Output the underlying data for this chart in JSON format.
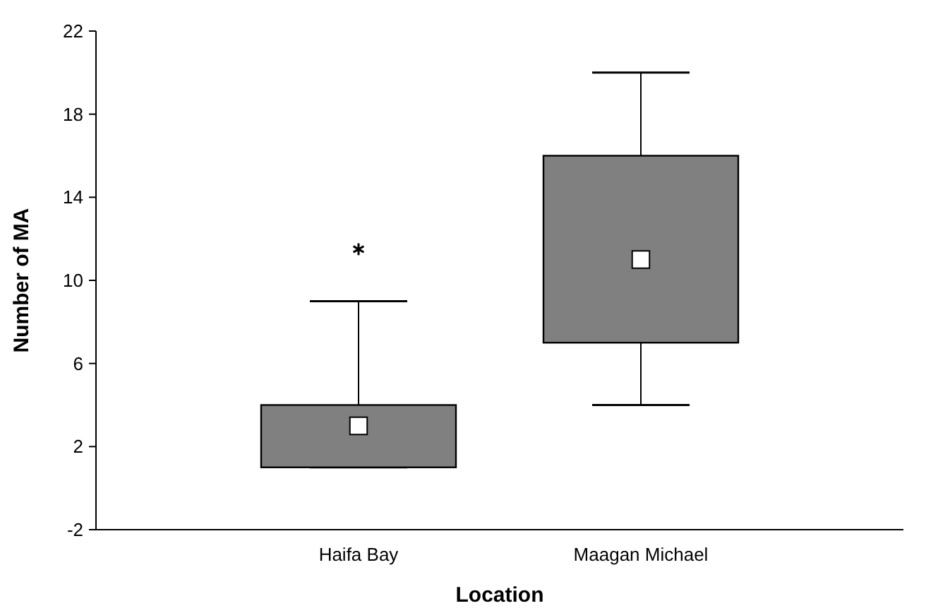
{
  "chart_data": {
    "type": "box",
    "xlabel": "Location",
    "ylabel": "Number of MA",
    "categories": [
      "Haifa Bay",
      "Maagan Michael"
    ],
    "boxes": [
      {
        "low": 1,
        "q1": 1,
        "median": 3,
        "q3": 4,
        "high": 9,
        "outliers": [
          11.5
        ]
      },
      {
        "low": 4,
        "q1": 7,
        "median": 11,
        "q3": 16,
        "high": 20
      }
    ],
    "color": "#808080",
    "marker": "square",
    "ylim": [
      -2,
      22
    ],
    "yticks": [
      -2,
      2,
      6,
      10,
      14,
      18,
      22
    ],
    "grid": false
  }
}
